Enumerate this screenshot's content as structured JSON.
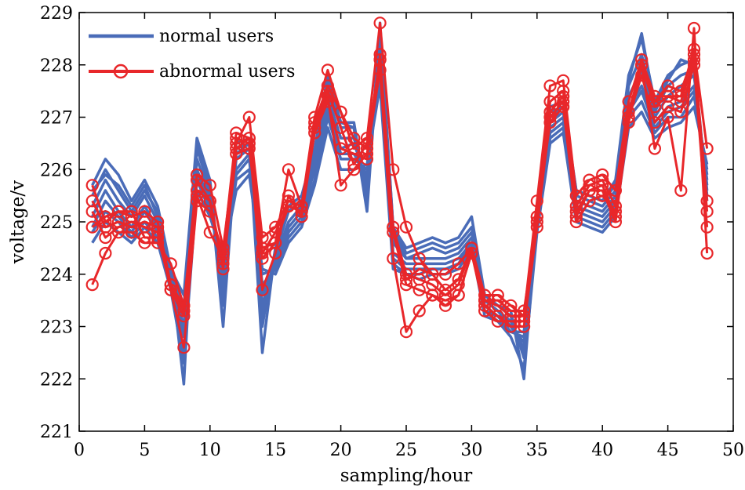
{
  "chart_data": {
    "type": "line",
    "title": "",
    "xlabel": "sampling/hour",
    "ylabel": "voltage/v",
    "xlim": [
      0,
      50
    ],
    "ylim": [
      221,
      229
    ],
    "xticks": [
      0,
      5,
      10,
      15,
      20,
      25,
      30,
      35,
      40,
      45,
      50
    ],
    "yticks": [
      221,
      222,
      223,
      224,
      225,
      226,
      227,
      228,
      229
    ],
    "grid": false,
    "legend": "top-left",
    "colors": {
      "normal": "#4a6cb8",
      "abnormal": "#e8272a"
    },
    "legend_entries": [
      {
        "label": "normal users",
        "marker": "none"
      },
      {
        "label": "abnormal users",
        "marker": "circle"
      }
    ],
    "x": [
      1,
      2,
      3,
      4,
      5,
      6,
      7,
      8,
      9,
      10,
      11,
      12,
      13,
      14,
      15,
      16,
      17,
      18,
      19,
      20,
      21,
      22,
      23,
      24,
      25,
      26,
      27,
      28,
      29,
      30,
      31,
      32,
      33,
      34,
      35,
      36,
      37,
      38,
      39,
      40,
      41,
      42,
      43,
      44,
      45,
      46,
      47,
      48
    ],
    "series": [
      {
        "group": "normal",
        "values": [
          225.7,
          226.2,
          225.9,
          225.4,
          225.8,
          225.3,
          224.1,
          223.6,
          226.6,
          225.8,
          223.4,
          226.5,
          226.6,
          223.0,
          224.5,
          225.3,
          225.5,
          226.4,
          227.8,
          226.9,
          226.9,
          225.4,
          228.8,
          224.9,
          224.4,
          224.5,
          224.6,
          224.5,
          224.6,
          224.9,
          223.6,
          223.4,
          223.2,
          222.4,
          225.1,
          227.2,
          227.3,
          225.6,
          225.5,
          225.4,
          225.8,
          227.8,
          228.5,
          227.3,
          227.8,
          228.0,
          228.1,
          225.5
        ]
      },
      {
        "group": "normal",
        "values": [
          225.3,
          225.8,
          225.4,
          225.1,
          225.5,
          225.0,
          224.0,
          223.2,
          226.2,
          225.5,
          223.8,
          226.2,
          226.4,
          223.4,
          224.3,
          225.0,
          225.3,
          226.2,
          227.4,
          226.6,
          226.6,
          225.7,
          228.4,
          224.6,
          224.3,
          224.3,
          224.3,
          224.3,
          224.4,
          224.7,
          223.5,
          223.3,
          223.0,
          222.7,
          225.0,
          226.9,
          227.1,
          225.4,
          225.3,
          225.2,
          225.5,
          227.4,
          227.9,
          227.0,
          227.4,
          227.6,
          227.8,
          225.7
        ]
      },
      {
        "group": "normal",
        "values": [
          224.9,
          225.4,
          225.1,
          224.8,
          225.2,
          224.8,
          223.9,
          222.8,
          225.9,
          225.3,
          224.1,
          225.9,
          226.2,
          223.8,
          224.1,
          224.8,
          225.1,
          226.0,
          227.1,
          226.3,
          226.3,
          225.9,
          228.0,
          224.3,
          224.1,
          224.1,
          224.1,
          224.1,
          224.2,
          224.6,
          223.3,
          223.2,
          222.9,
          222.9,
          224.9,
          226.7,
          226.9,
          225.2,
          225.1,
          225.0,
          225.3,
          227.1,
          227.5,
          226.8,
          227.1,
          227.2,
          227.5,
          225.9
        ]
      },
      {
        "group": "normal",
        "values": [
          224.6,
          225.0,
          224.8,
          224.6,
          224.9,
          224.6,
          223.7,
          222.3,
          225.6,
          225.1,
          224.3,
          225.6,
          225.9,
          224.1,
          224.0,
          224.6,
          224.9,
          225.7,
          226.8,
          226.0,
          226.0,
          226.1,
          227.6,
          224.1,
          224.0,
          223.9,
          224.0,
          224.0,
          224.1,
          224.5,
          223.2,
          223.1,
          222.8,
          222.2,
          224.8,
          226.5,
          226.7,
          225.0,
          224.9,
          224.8,
          225.1,
          226.8,
          227.1,
          226.6,
          226.8,
          226.9,
          227.2,
          226.1
        ]
      },
      {
        "group": "normal",
        "values": [
          225.1,
          225.6,
          225.2,
          224.9,
          225.3,
          224.9,
          223.9,
          223.0,
          226.0,
          225.4,
          224.0,
          226.0,
          226.3,
          223.6,
          224.2,
          224.9,
          225.2,
          226.1,
          227.2,
          226.4,
          226.5,
          225.8,
          228.1,
          224.4,
          224.2,
          224.2,
          224.2,
          224.2,
          224.3,
          224.6,
          223.4,
          223.2,
          223.0,
          222.6,
          224.9,
          226.8,
          227.0,
          225.3,
          225.2,
          225.1,
          225.4,
          227.2,
          227.6,
          226.9,
          227.2,
          227.3,
          227.6,
          225.8
        ]
      },
      {
        "group": "normal",
        "values": [
          225.5,
          226.0,
          225.6,
          225.2,
          225.6,
          225.2,
          224.0,
          223.4,
          226.4,
          225.6,
          223.6,
          226.3,
          226.5,
          223.2,
          224.4,
          225.2,
          225.4,
          226.3,
          227.6,
          226.8,
          226.8,
          225.5,
          228.6,
          224.8,
          224.3,
          224.4,
          224.5,
          224.4,
          224.5,
          224.8,
          223.5,
          223.3,
          223.1,
          222.5,
          225.0,
          227.0,
          227.2,
          225.5,
          225.4,
          225.3,
          225.6,
          227.6,
          228.2,
          227.1,
          227.6,
          227.8,
          227.9,
          225.6
        ]
      },
      {
        "group": "normal",
        "values": [
          224.8,
          225.2,
          225.0,
          224.7,
          225.0,
          224.7,
          223.8,
          222.5,
          225.8,
          225.2,
          224.2,
          225.8,
          226.0,
          224.0,
          224.1,
          224.7,
          225.0,
          225.8,
          227.0,
          226.2,
          226.2,
          226.0,
          227.8,
          224.2,
          224.0,
          224.0,
          224.1,
          224.1,
          224.2,
          224.5,
          223.3,
          223.1,
          222.9,
          222.8,
          224.9,
          226.6,
          226.8,
          225.1,
          225.0,
          224.9,
          225.2,
          227.0,
          227.3,
          226.7,
          227.0,
          227.0,
          227.4,
          226.0
        ]
      },
      {
        "group": "normal",
        "values": [
          225.6,
          225.9,
          225.7,
          225.3,
          225.7,
          225.1,
          224.1,
          221.9,
          226.5,
          225.7,
          223.0,
          226.4,
          226.5,
          222.5,
          224.5,
          225.2,
          225.4,
          226.3,
          227.7,
          226.9,
          226.8,
          225.2,
          228.7,
          224.9,
          224.5,
          224.6,
          224.7,
          224.6,
          224.7,
          225.1,
          223.6,
          223.4,
          223.3,
          222.0,
          225.1,
          227.1,
          227.2,
          225.6,
          225.5,
          225.4,
          225.7,
          227.7,
          228.6,
          227.2,
          227.7,
          228.1,
          228.0,
          225.4
        ]
      },
      {
        "group": "abnormal",
        "values": [
          223.8,
          224.4,
          224.8,
          224.8,
          224.6,
          224.6,
          224.2,
          223.4,
          225.6,
          225.4,
          224.1,
          226.3,
          226.4,
          224.4,
          224.8,
          225.3,
          225.2,
          226.8,
          227.4,
          225.7,
          226.0,
          226.3,
          227.9,
          224.3,
          222.9,
          223.3,
          223.6,
          223.5,
          223.6,
          224.4,
          223.3,
          223.1,
          223.1,
          223.1,
          225.1,
          226.9,
          227.2,
          225.1,
          225.6,
          225.6,
          225.0,
          226.9,
          228.0,
          226.4,
          227.0,
          225.6,
          228.7,
          224.4
        ]
      },
      {
        "group": "abnormal",
        "values": [
          225.7,
          225.0,
          225.2,
          225.1,
          225.2,
          225.0,
          223.8,
          223.3,
          225.9,
          225.7,
          224.5,
          226.5,
          227.0,
          224.7,
          224.9,
          225.4,
          225.3,
          227.0,
          227.9,
          227.1,
          226.4,
          226.6,
          228.8,
          226.0,
          224.9,
          224.3,
          224.0,
          224.0,
          224.2,
          224.5,
          223.6,
          223.6,
          223.4,
          223.2,
          225.4,
          227.6,
          227.7,
          225.5,
          225.8,
          225.9,
          225.6,
          227.3,
          228.1,
          227.4,
          227.4,
          227.4,
          228.3,
          226.4
        ]
      },
      {
        "group": "abnormal",
        "values": [
          225.4,
          224.9,
          225.0,
          224.9,
          225.0,
          224.9,
          223.7,
          222.6,
          225.4,
          225.2,
          224.4,
          226.7,
          226.6,
          224.5,
          224.6,
          226.0,
          225.3,
          226.9,
          227.6,
          227.1,
          226.6,
          226.4,
          228.1,
          224.9,
          223.9,
          224.1,
          224.0,
          223.7,
          223.9,
          224.5,
          223.5,
          223.5,
          223.3,
          223.3,
          225.0,
          227.3,
          227.5,
          225.3,
          225.7,
          225.8,
          225.3,
          227.0,
          228.0,
          227.3,
          227.6,
          227.5,
          228.2,
          225.4
        ]
      },
      {
        "group": "abnormal",
        "values": [
          225.2,
          224.7,
          224.9,
          225.0,
          224.9,
          224.8,
          223.7,
          223.2,
          225.5,
          224.8,
          224.3,
          226.4,
          226.6,
          223.7,
          224.4,
          225.5,
          225.1,
          226.7,
          227.3,
          226.4,
          226.3,
          226.2,
          228.2,
          224.8,
          223.8,
          223.7,
          223.6,
          223.4,
          223.6,
          224.4,
          223.4,
          223.2,
          223.0,
          223.0,
          224.9,
          227.0,
          227.3,
          225.0,
          225.4,
          225.5,
          225.2,
          227.0,
          227.8,
          226.9,
          227.2,
          227.1,
          228.0,
          224.9
        ]
      },
      {
        "group": "abnormal",
        "values": [
          224.9,
          225.1,
          225.2,
          225.2,
          224.7,
          224.7,
          223.8,
          223.4,
          225.8,
          225.4,
          224.2,
          226.6,
          226.5,
          224.3,
          224.6,
          225.3,
          225.2,
          226.8,
          227.5,
          226.8,
          226.1,
          226.5,
          228.1,
          224.9,
          224.0,
          223.9,
          223.8,
          223.6,
          223.8,
          224.5,
          223.5,
          223.4,
          223.2,
          223.2,
          225.1,
          227.1,
          227.4,
          225.2,
          225.6,
          225.7,
          225.1,
          227.1,
          228.0,
          227.2,
          227.4,
          227.3,
          228.1,
          225.2
        ]
      }
    ]
  }
}
